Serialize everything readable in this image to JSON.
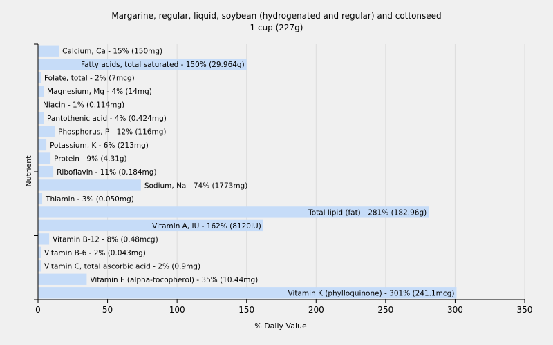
{
  "chart_data": {
    "type": "bar",
    "orientation": "horizontal",
    "title": "Margarine, regular, liquid, soybean (hydrogenated and regular) and cottonseed",
    "subtitle": "1 cup (227g)",
    "xlabel": "% Daily Value",
    "ylabel": "Nutrient",
    "xlim": [
      0,
      350
    ],
    "xticks": [
      0,
      50,
      100,
      150,
      200,
      250,
      300,
      350
    ],
    "grid": true,
    "bar_color": "#c6dcf8",
    "categories": [
      "Calcium, Ca",
      "Fatty acids, total saturated",
      "Folate, total",
      "Magnesium, Mg",
      "Niacin",
      "Pantothenic acid",
      "Phosphorus, P",
      "Potassium, K",
      "Protein",
      "Riboflavin",
      "Sodium, Na",
      "Thiamin",
      "Total lipid (fat)",
      "Vitamin A, IU",
      "Vitamin B-12",
      "Vitamin B-6",
      "Vitamin C, total ascorbic acid",
      "Vitamin E (alpha-tocopherol)",
      "Vitamin K (phylloquinone)"
    ],
    "values": [
      15,
      150,
      2,
      4,
      1,
      4,
      12,
      6,
      9,
      11,
      74,
      3,
      281,
      162,
      8,
      2,
      2,
      35,
      301
    ],
    "labels": [
      "Calcium, Ca - 15% (150mg)",
      "Fatty acids, total saturated - 150% (29.964g)",
      "Folate, total - 2% (7mcg)",
      "Magnesium, Mg - 4% (14mg)",
      "Niacin - 1% (0.114mg)",
      "Pantothenic acid - 4% (0.424mg)",
      "Phosphorus, P - 12% (116mg)",
      "Potassium, K - 6% (213mg)",
      "Protein - 9% (4.31g)",
      "Riboflavin - 11% (0.184mg)",
      "Sodium, Na - 74% (1773mg)",
      "Thiamin - 3% (0.050mg)",
      "Total lipid (fat) - 281% (182.96g)",
      "Vitamin A, IU - 162% (8120IU)",
      "Vitamin B-12 - 8% (0.48mcg)",
      "Vitamin B-6 - 2% (0.043mg)",
      "Vitamin C, total ascorbic acid - 2% (0.9mg)",
      "Vitamin E (alpha-tocopherol) - 35% (10.44mg)",
      "Vitamin K (phylloquinone) - 301% (241.1mcg)"
    ]
  }
}
